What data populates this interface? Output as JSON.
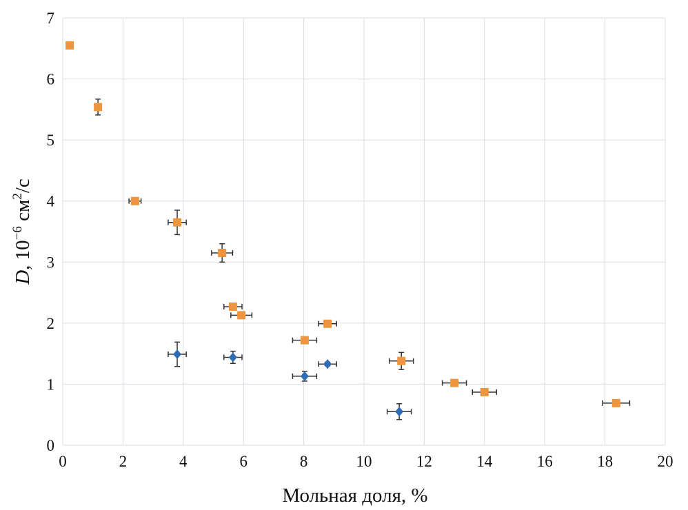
{
  "chart_data": {
    "type": "scatter",
    "title": "",
    "xlabel": "Мольная доля, %",
    "ylabel_main": "D",
    "ylabel_rest": ", 10",
    "ylabel_exp": "−6",
    "ylabel_unit": " см",
    "ylabel_unit_exp": "2",
    "ylabel_tail": "/с",
    "xlim": [
      0,
      20
    ],
    "ylim": [
      0,
      7
    ],
    "xticks": [
      "0",
      "2",
      "4",
      "6",
      "8",
      "10",
      "12",
      "14",
      "16",
      "18",
      "20"
    ],
    "yticks": [
      "0",
      "1",
      "2",
      "3",
      "4",
      "5",
      "6",
      "7"
    ],
    "grid": true,
    "series": [
      {
        "name": "orange squares",
        "color": "#f0953f",
        "marker": "square",
        "points": [
          {
            "x": 0.23,
            "y": 6.55,
            "xerr": 0,
            "yerr": 0
          },
          {
            "x": 1.17,
            "y": 5.54,
            "xerr": 0.1,
            "yerr": 0.13
          },
          {
            "x": 2.4,
            "y": 4.0,
            "xerr": 0.2,
            "yerr": 0.03
          },
          {
            "x": 3.8,
            "y": 3.65,
            "xerr": 0.3,
            "yerr": 0.2
          },
          {
            "x": 5.29,
            "y": 3.15,
            "xerr": 0.35,
            "yerr": 0.15
          },
          {
            "x": 5.65,
            "y": 2.27,
            "xerr": 0.3,
            "yerr": 0
          },
          {
            "x": 5.93,
            "y": 2.13,
            "xerr": 0.35,
            "yerr": 0
          },
          {
            "x": 8.79,
            "y": 1.99,
            "xerr": 0.3,
            "yerr": 0
          },
          {
            "x": 8.03,
            "y": 1.72,
            "xerr": 0.4,
            "yerr": 0
          },
          {
            "x": 11.24,
            "y": 1.38,
            "xerr": 0.4,
            "yerr": 0.14
          },
          {
            "x": 13.0,
            "y": 1.02,
            "xerr": 0.4,
            "yerr": 0
          },
          {
            "x": 14.0,
            "y": 0.87,
            "xerr": 0.4,
            "yerr": 0
          },
          {
            "x": 18.37,
            "y": 0.69,
            "xerr": 0.45,
            "yerr": 0
          }
        ]
      },
      {
        "name": "blue diamonds",
        "color": "#2e6db4",
        "marker": "diamond",
        "points": [
          {
            "x": 3.8,
            "y": 1.49,
            "xerr": 0.3,
            "yerr": 0.2
          },
          {
            "x": 5.65,
            "y": 1.44,
            "xerr": 0.3,
            "yerr": 0.1
          },
          {
            "x": 8.03,
            "y": 1.13,
            "xerr": 0.4,
            "yerr": 0.08
          },
          {
            "x": 8.79,
            "y": 1.33,
            "xerr": 0.3,
            "yerr": 0.03
          },
          {
            "x": 11.17,
            "y": 0.55,
            "xerr": 0.4,
            "yerr": 0.13
          }
        ]
      }
    ]
  }
}
